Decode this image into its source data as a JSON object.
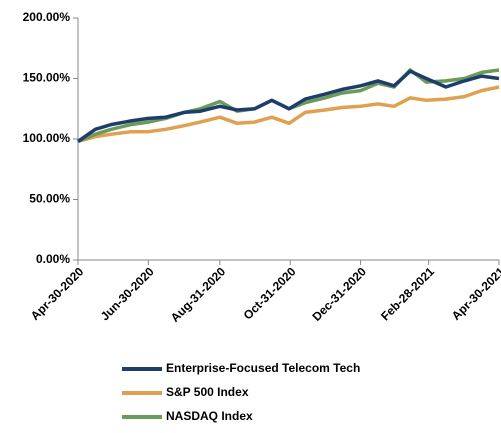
{
  "chart_data": {
    "type": "line",
    "x": [
      "2020-04-30",
      "2020-05-15",
      "2020-05-29",
      "2020-06-15",
      "2020-06-30",
      "2020-07-15",
      "2020-07-31",
      "2020-08-14",
      "2020-08-31",
      "2020-09-15",
      "2020-09-30",
      "2020-10-15",
      "2020-10-30",
      "2020-11-13",
      "2020-11-30",
      "2020-12-15",
      "2020-12-31",
      "2021-01-15",
      "2021-01-29",
      "2021-02-12",
      "2021-02-26",
      "2021-03-15",
      "2021-03-31",
      "2021-04-15",
      "2021-04-30"
    ],
    "series": [
      {
        "name": "Enterprise-Focused Telecom Tech",
        "color": "#1f3d6b",
        "values": [
          98,
          108,
          112,
          115,
          117,
          118,
          122,
          123,
          127,
          124,
          125,
          132,
          125,
          133,
          137,
          141,
          144,
          148,
          144,
          156,
          150,
          143,
          148,
          152,
          150
        ]
      },
      {
        "name": "S&P 500 Index",
        "color": "#e0a050",
        "values": [
          98,
          102,
          104,
          106,
          106,
          108,
          111,
          114,
          118,
          113,
          114,
          118,
          113,
          122,
          124,
          126,
          127,
          129,
          127,
          134,
          132,
          133,
          135,
          140,
          143
        ]
      },
      {
        "name": "NASDAQ Index",
        "color": "#6b9a5b",
        "values": [
          98,
          104,
          108,
          112,
          114,
          117,
          122,
          125,
          131,
          123,
          125,
          132,
          125,
          130,
          134,
          138,
          140,
          146,
          143,
          157,
          147,
          148,
          150,
          155,
          157
        ]
      }
    ],
    "xlim": [
      "2020-04-30",
      "2021-04-30"
    ],
    "xticks": [
      {
        "value": "2020-04-30",
        "label": "Apr-30-2020"
      },
      {
        "value": "2020-06-30",
        "label": "Jun-30-2020"
      },
      {
        "value": "2020-08-31",
        "label": "Aug-31-2020"
      },
      {
        "value": "2020-10-31",
        "label": "Oct-31-2020"
      },
      {
        "value": "2020-12-31",
        "label": "Dec-31-2020"
      },
      {
        "value": "2021-02-28",
        "label": "Feb-28-2021"
      },
      {
        "value": "2021-04-30",
        "label": "Apr-30-2021"
      }
    ],
    "ylim": [
      0,
      200
    ],
    "yticks": [
      {
        "value": 0,
        "label": "0.00%"
      },
      {
        "value": 50,
        "label": "50.00%"
      },
      {
        "value": 100,
        "label": "100.00%"
      },
      {
        "value": 150,
        "label": "150.00%"
      },
      {
        "value": 200,
        "label": "200.00%"
      }
    ]
  }
}
